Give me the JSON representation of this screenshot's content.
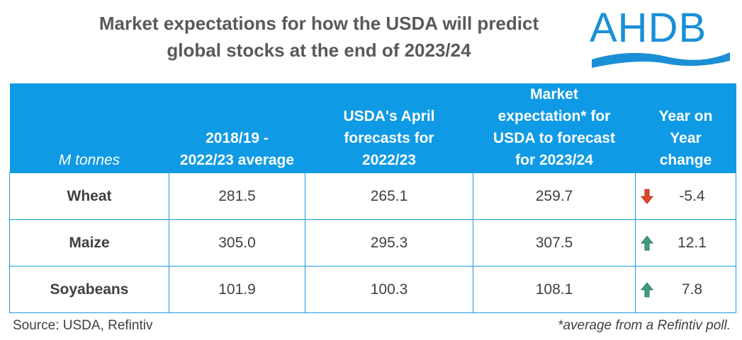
{
  "title_line1": "Market expectations for how the USDA will predict",
  "title_line2": "global stocks at the end of 2023/24",
  "logo_text": "AHDB",
  "colors": {
    "header": "#0f9ae6",
    "border": "#1a9be0",
    "down": "#e0452b",
    "up": "#3f9b80",
    "logo": "#1a8fd6"
  },
  "chart_data": {
    "type": "table",
    "unit_label": "M tonnes",
    "columns": [
      "2018/19 - 2022/23 average",
      "USDA's April forecasts for 2022/23",
      "Market expectation* for USDA to forecast for 2023/24",
      "Year on Year change"
    ],
    "column_display": [
      [
        "2018/19 -",
        "2022/23 average"
      ],
      [
        "USDA's April",
        "forecasts for",
        "2022/23"
      ],
      [
        "Market",
        "expectation* for",
        "USDA to forecast",
        "for 2023/24"
      ],
      [
        "Year on",
        "Year",
        "change"
      ]
    ],
    "rows": [
      {
        "label": "Wheat",
        "values": [
          "281.5",
          "265.1",
          "259.7",
          "-5.4"
        ],
        "direction": "down",
        "arrow_icon": "arrow-down-icon"
      },
      {
        "label": "Maize",
        "values": [
          "305.0",
          "295.3",
          "307.5",
          "12.1"
        ],
        "direction": "up",
        "arrow_icon": "arrow-up-icon"
      },
      {
        "label": "Soyabeans",
        "values": [
          "101.9",
          "100.3",
          "108.1",
          "7.8"
        ],
        "direction": "up",
        "arrow_icon": "arrow-up-icon"
      }
    ]
  },
  "source": "Source: USDA, Refintiv",
  "footnote": "*average from a Refintiv poll."
}
